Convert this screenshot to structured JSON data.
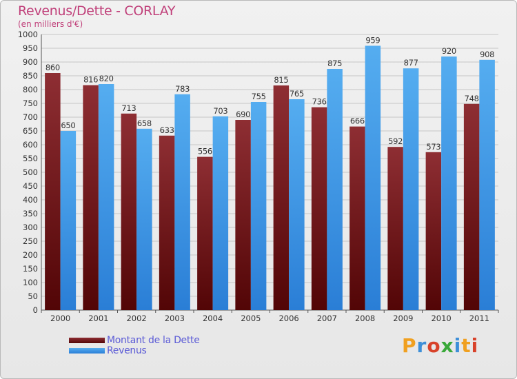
{
  "header": {
    "title": "Revenus/Dette - CORLAY",
    "subtitle": "(en milliers d'€)"
  },
  "colors": {
    "title": "#c0407a",
    "dette": "#7a1f22",
    "revenus": "#3d9ae6",
    "grid": "#c6c6c6",
    "legend_text": "#5b5bd6"
  },
  "chart_data": {
    "type": "bar",
    "title": "Revenus/Dette - CORLAY",
    "ylabel": "(en milliers d'€)",
    "xlabel": "",
    "ylim": [
      0,
      1000
    ],
    "ytick_step": 50,
    "grid": true,
    "legend_position": "bottom-left",
    "categories": [
      "2000",
      "2001",
      "2002",
      "2003",
      "2004",
      "2005",
      "2006",
      "2007",
      "2008",
      "2009",
      "2010",
      "2011"
    ],
    "series": [
      {
        "name": "Montant de la Dette",
        "values": [
          860,
          816,
          713,
          633,
          556,
          690,
          815,
          736,
          666,
          592,
          573,
          748
        ]
      },
      {
        "name": "Revenus",
        "values": [
          650,
          820,
          658,
          783,
          703,
          755,
          765,
          875,
          959,
          877,
          920,
          908
        ]
      }
    ]
  },
  "legend": {
    "items": [
      {
        "label": "Montant de la Dette"
      },
      {
        "label": "Revenus"
      }
    ]
  },
  "logo": {
    "letters": [
      "P",
      "r",
      "o",
      "x",
      "i",
      "t",
      "i"
    ],
    "colors": [
      "#f0a020",
      "#3d8fd8",
      "#d8422a",
      "#38a838",
      "#3d8fd8",
      "#f0a020",
      "#d8422a"
    ]
  }
}
